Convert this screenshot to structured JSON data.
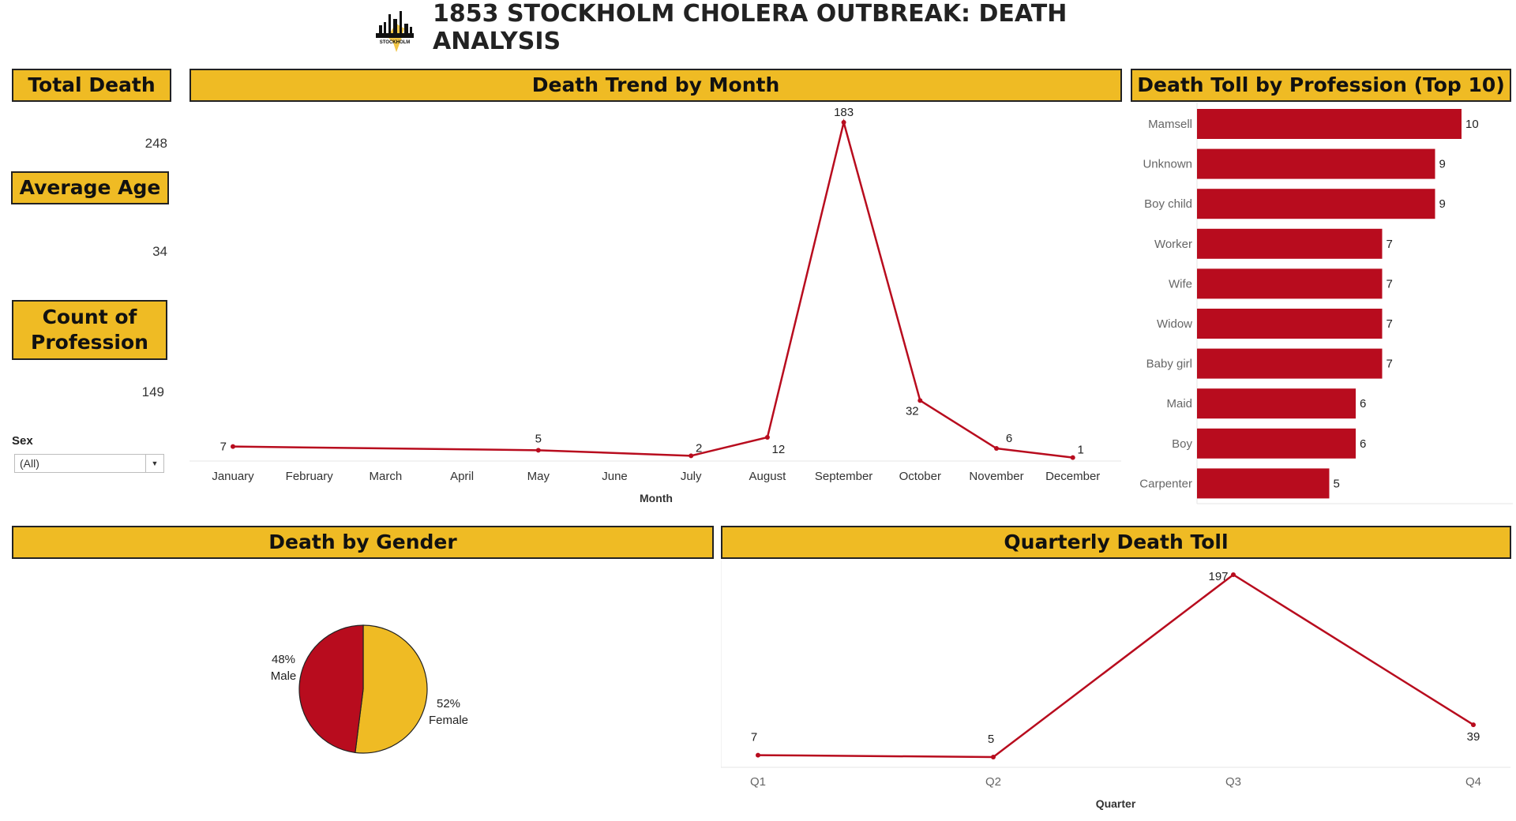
{
  "dashboard": {
    "title": "1853 STOCKHOLM CHOLERA OUTBREAK: DEATH ANALYSIS",
    "logo_text": "STOCKHOLM",
    "accent_color": "#efbb24",
    "series_color": "#b80c1e"
  },
  "kpis": {
    "total_death_label": "Total Death",
    "total_death_value": "248",
    "average_age_label": "Average Age",
    "average_age_value": "34",
    "count_profession_label": "Count of Profession",
    "count_profession_value": "149"
  },
  "filter": {
    "label": "Sex",
    "value": "(All)"
  },
  "panels": {
    "month_title": "Death Trend by Month",
    "profession_title": "Death Toll by Profession (Top 10)",
    "gender_title": "Death by Gender",
    "quarter_title": "Quarterly Death Toll"
  },
  "chart_data": [
    {
      "type": "line",
      "xlabel": "Month",
      "categories": [
        "January",
        "February",
        "March",
        "April",
        "May",
        "June",
        "July",
        "August",
        "September",
        "October",
        "November",
        "December"
      ],
      "series": [
        {
          "values": [
            7,
            null,
            null,
            null,
            5,
            null,
            2,
            12,
            183,
            32,
            6,
            1
          ]
        }
      ]
    },
    {
      "type": "bar",
      "orientation": "horizontal",
      "categories": [
        "Mamsell",
        "Unknown",
        "Boy child",
        "Worker",
        "Wife",
        "Widow",
        "Baby girl",
        "Maid",
        "Boy",
        "Carpenter"
      ],
      "values": [
        10,
        9,
        9,
        7,
        7,
        7,
        7,
        6,
        6,
        5
      ]
    },
    {
      "type": "pie",
      "slices": [
        {
          "label": "Female",
          "percent": "52%",
          "value": 52,
          "color": "#efbb24"
        },
        {
          "label": "Male",
          "percent": "48%",
          "value": 48,
          "color": "#b80c1e"
        }
      ]
    },
    {
      "type": "line",
      "xlabel": "Quarter",
      "categories": [
        "Q1",
        "Q2",
        "Q3",
        "Q4"
      ],
      "series": [
        {
          "values": [
            7,
            5,
            197,
            39
          ]
        }
      ]
    }
  ]
}
